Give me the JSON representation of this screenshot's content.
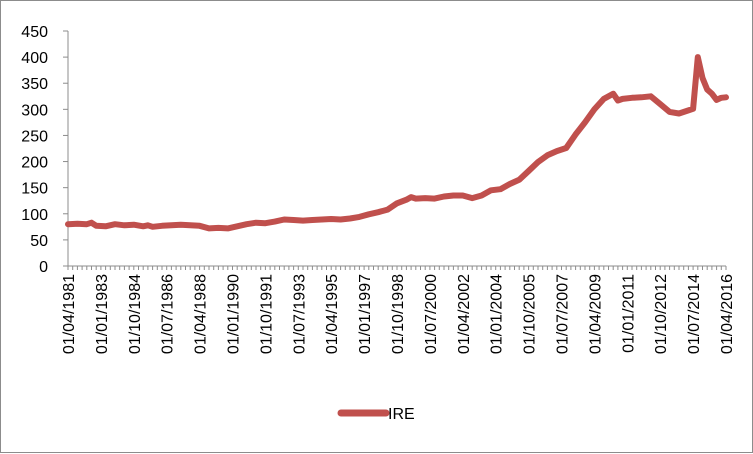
{
  "chart_data": {
    "type": "line",
    "title": "",
    "xlabel": "",
    "ylabel": "",
    "ylim": [
      0,
      450
    ],
    "y_ticks": [
      0,
      50,
      100,
      150,
      200,
      250,
      300,
      350,
      400,
      450
    ],
    "x_tick_labels": [
      "01/04/1981",
      "01/01/1983",
      "01/10/1984",
      "01/07/1986",
      "01/04/1988",
      "01/01/1990",
      "01/10/1991",
      "01/07/1993",
      "01/04/1995",
      "01/01/1997",
      "01/10/1998",
      "01/07/2000",
      "01/04/2002",
      "01/01/2004",
      "01/10/2005",
      "01/07/2007",
      "01/04/2009",
      "01/01/2011",
      "01/10/2012",
      "01/07/2014",
      "01/04/2016"
    ],
    "grid": false,
    "legend_position": "bottom",
    "line_color": "#c0504d",
    "series": [
      {
        "name": "IRE",
        "x": [
          "1981-04",
          "1981-10",
          "1982-04",
          "1982-07",
          "1982-10",
          "1983-04",
          "1983-10",
          "1984-04",
          "1984-10",
          "1985-04",
          "1985-07",
          "1985-10",
          "1986-04",
          "1986-10",
          "1987-04",
          "1987-10",
          "1988-04",
          "1988-10",
          "1989-04",
          "1989-10",
          "1990-04",
          "1990-10",
          "1991-04",
          "1991-10",
          "1992-04",
          "1992-10",
          "1993-04",
          "1993-10",
          "1994-04",
          "1994-10",
          "1995-04",
          "1995-10",
          "1996-04",
          "1996-10",
          "1997-04",
          "1997-10",
          "1998-04",
          "1998-10",
          "1999-04",
          "1999-07",
          "1999-10",
          "2000-04",
          "2000-10",
          "2001-04",
          "2001-10",
          "2002-04",
          "2002-10",
          "2003-04",
          "2003-10",
          "2004-04",
          "2004-10",
          "2005-04",
          "2005-10",
          "2006-04",
          "2006-10",
          "2007-04",
          "2007-10",
          "2008-04",
          "2008-10",
          "2009-04",
          "2009-10",
          "2010-04",
          "2010-07",
          "2010-10",
          "2011-04",
          "2011-10",
          "2012-04",
          "2012-10",
          "2013-04",
          "2013-10",
          "2014-04",
          "2014-07",
          "2014-10",
          "2015-01",
          "2015-04",
          "2015-07",
          "2015-10",
          "2016-01",
          "2016-04"
        ],
        "values": [
          80,
          81,
          80,
          83,
          77,
          76,
          80,
          78,
          79,
          76,
          78,
          75,
          77,
          78,
          79,
          78,
          77,
          72,
          73,
          72,
          76,
          80,
          83,
          82,
          85,
          89,
          88,
          87,
          88,
          89,
          90,
          89,
          91,
          94,
          99,
          103,
          108,
          120,
          127,
          132,
          129,
          130,
          129,
          133,
          135,
          135,
          130,
          135,
          145,
          147,
          157,
          165,
          182,
          199,
          212,
          220,
          226,
          252,
          275,
          300,
          320,
          330,
          317,
          320,
          322,
          323,
          325,
          310,
          295,
          292,
          298,
          301,
          400,
          360,
          338,
          330,
          318,
          322,
          323
        ]
      }
    ]
  }
}
